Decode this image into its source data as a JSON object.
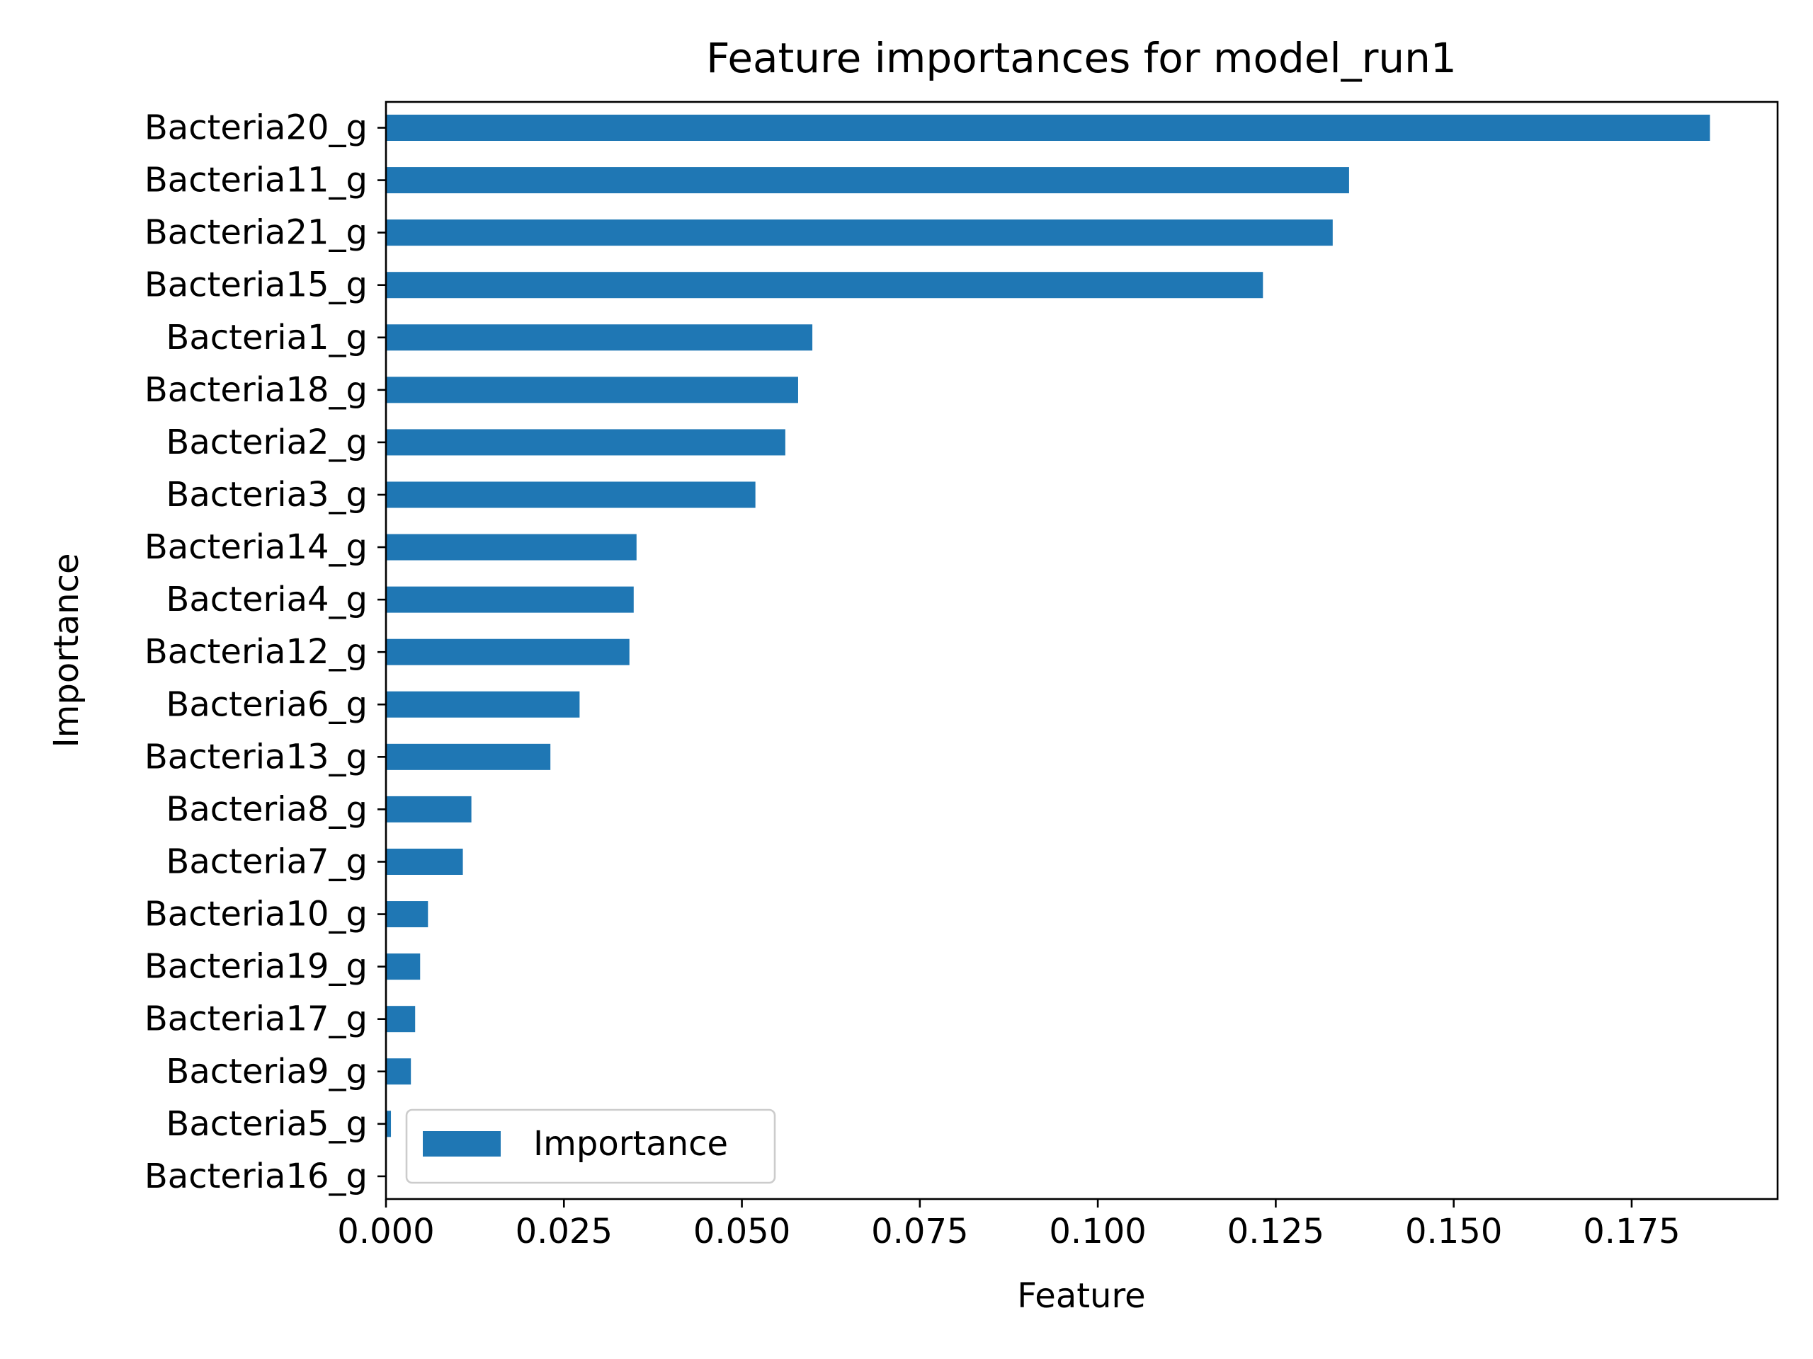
{
  "chart_data": {
    "type": "bar",
    "orientation": "horizontal",
    "title": "Feature importances for model_run1",
    "xlabel": "Feature",
    "ylabel": "Importance",
    "categories": [
      "Bacteria20_g",
      "Bacteria11_g",
      "Bacteria21_g",
      "Bacteria15_g",
      "Bacteria1_g",
      "Bacteria18_g",
      "Bacteria2_g",
      "Bacteria3_g",
      "Bacteria14_g",
      "Bacteria4_g",
      "Bacteria12_g",
      "Bacteria6_g",
      "Bacteria13_g",
      "Bacteria8_g",
      "Bacteria7_g",
      "Bacteria10_g",
      "Bacteria19_g",
      "Bacteria17_g",
      "Bacteria9_g",
      "Bacteria5_g",
      "Bacteria16_g"
    ],
    "series": [
      {
        "name": "Importance",
        "color": "#1f77b4",
        "values": [
          0.186,
          0.1353,
          0.133,
          0.1232,
          0.0599,
          0.0579,
          0.0561,
          0.0519,
          0.0352,
          0.0348,
          0.0342,
          0.0272,
          0.0231,
          0.012,
          0.0108,
          0.0059,
          0.0048,
          0.0041,
          0.0035,
          0.0007,
          0.0
        ]
      }
    ],
    "xlim": [
      0.0,
      0.1955
    ],
    "xticks": [
      "0.000",
      "0.025",
      "0.050",
      "0.075",
      "0.100",
      "0.125",
      "0.150",
      "0.175"
    ],
    "xtick_values": [
      0.0,
      0.025,
      0.05,
      0.075,
      0.1,
      0.125,
      0.15,
      0.175
    ],
    "grid": false,
    "legend_position": "lower-left"
  }
}
